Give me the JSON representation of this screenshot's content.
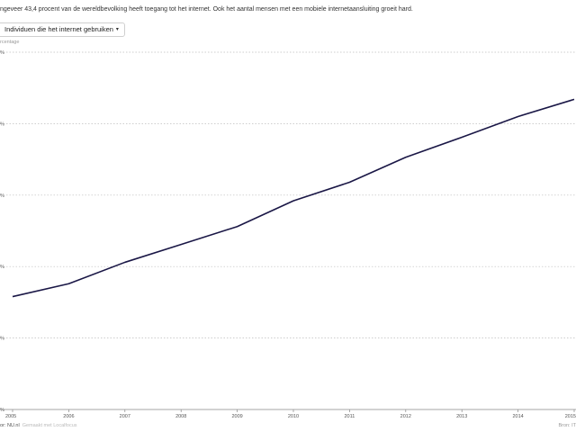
{
  "header": {
    "subtitle": "ngeveer 43,4 procent van de wereldbevolking heeft toegang tot het internet. Ook het aantal mensen met een mobiele internetaansluiting groeit hard.",
    "dropdown_label": "Individuen die het internet gebruiken",
    "unit_label": "rcentage"
  },
  "footer": {
    "source": "or: NU.nl",
    "made_with": "Gemaakt met Localfocus",
    "bron": "Bron: IT"
  },
  "colors": {
    "line": "#1a1746",
    "grid": "#bdbdbd",
    "axis": "#888888"
  },
  "chart_data": {
    "type": "line",
    "x": [
      "2005",
      "2006",
      "2007",
      "2008",
      "2009",
      "2010",
      "2011",
      "2012",
      "2013",
      "2014",
      "2015"
    ],
    "y_tick_labels": [
      "%",
      "%",
      "%",
      "%",
      "%",
      "%"
    ],
    "series": [
      {
        "values": [
          15.8,
          17.6,
          20.6,
          23.1,
          25.6,
          29.2,
          31.8,
          35.3,
          38.1,
          41.0,
          43.4
        ]
      }
    ],
    "ylim": [
      0,
      50
    ],
    "grid": true
  }
}
